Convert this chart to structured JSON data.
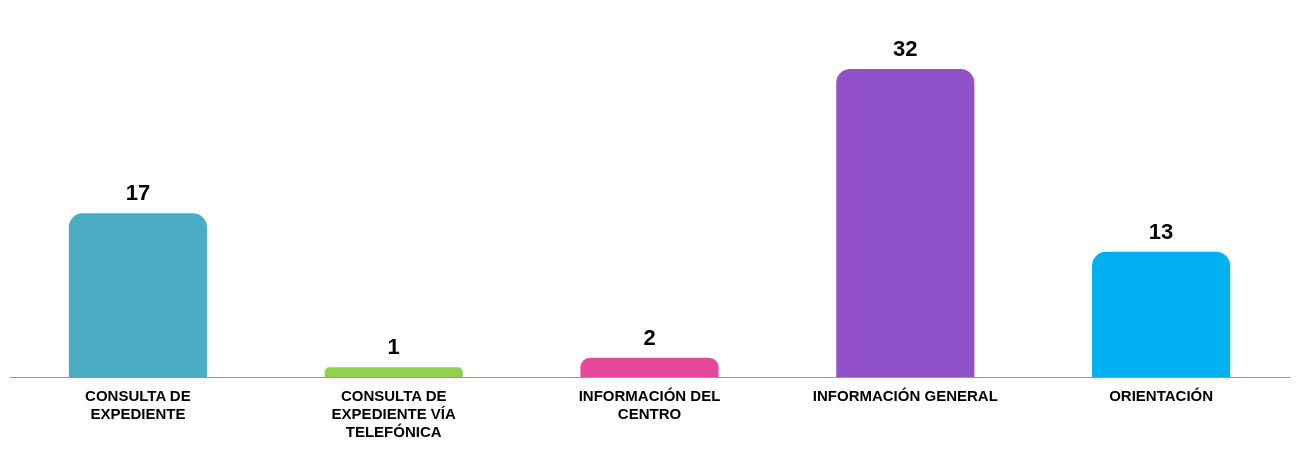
{
  "chart_data": {
    "type": "bar",
    "categories": [
      "CONSULTA DE EXPEDIENTE",
      "CONSULTA DE EXPEDIENTE VÍA TELEFÓNICA",
      "INFORMACIÓN DEL CENTRO",
      "INFORMACIÓN GENERAL",
      "ORIENTACIÓN"
    ],
    "values": [
      17,
      1,
      2,
      32,
      13
    ],
    "colors": [
      "#4bacc6",
      "#92d050",
      "#e8489c",
      "#9152c9",
      "#00b0f0"
    ],
    "data_labels": true,
    "grid": false,
    "legend": false,
    "tick_labels": "x"
  }
}
